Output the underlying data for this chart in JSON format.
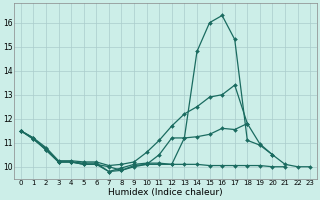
{
  "xlabel": "Humidex (Indice chaleur)",
  "background_color": "#cceee8",
  "grid_color": "#aacccc",
  "line_color": "#1a6b60",
  "xlim": [
    -0.5,
    23.5
  ],
  "ylim": [
    9.5,
    16.8
  ],
  "yticks": [
    10,
    11,
    12,
    13,
    14,
    15,
    16
  ],
  "xticks": [
    0,
    1,
    2,
    3,
    4,
    5,
    6,
    7,
    8,
    9,
    10,
    11,
    12,
    13,
    14,
    15,
    16,
    17,
    18,
    19,
    20,
    21,
    22,
    23
  ],
  "series": [
    {
      "x": [
        0,
        1,
        2,
        3,
        4,
        5,
        6,
        7,
        8,
        9,
        10,
        11,
        12,
        13,
        14,
        15,
        16,
        17,
        18,
        19,
        20,
        21,
        22,
        23
      ],
      "y": [
        11.5,
        11.2,
        10.7,
        10.2,
        10.2,
        10.15,
        10.15,
        9.8,
        9.95,
        10.1,
        10.15,
        10.15,
        10.1,
        11.2,
        14.8,
        16.0,
        16.3,
        15.3,
        11.1,
        10.9,
        10.5,
        10.1,
        10.0,
        10.0
      ]
    },
    {
      "x": [
        0,
        1,
        2,
        3,
        4,
        5,
        6,
        7,
        8,
        9,
        10,
        11,
        12,
        13,
        14,
        15,
        16,
        17,
        18
      ],
      "y": [
        11.5,
        11.2,
        10.8,
        10.25,
        10.25,
        10.2,
        10.2,
        10.05,
        10.1,
        10.2,
        10.6,
        11.1,
        11.7,
        12.2,
        12.5,
        12.9,
        13.0,
        13.4,
        11.8
      ]
    },
    {
      "x": [
        0,
        1,
        2,
        3,
        4,
        5,
        6,
        7,
        8,
        9,
        10,
        11,
        12,
        13,
        14,
        15,
        16,
        17,
        18,
        19,
        20,
        21,
        22,
        23
      ],
      "y": [
        11.5,
        11.15,
        10.75,
        10.2,
        10.2,
        10.1,
        10.1,
        10.0,
        9.85,
        10.0,
        10.1,
        10.5,
        11.2,
        11.2,
        11.25,
        11.35,
        11.6,
        11.55,
        11.8,
        10.95,
        10.5,
        null,
        null,
        null
      ]
    },
    {
      "x": [
        0,
        1,
        2,
        3,
        4,
        5,
        6,
        7,
        8,
        9,
        10,
        11,
        12,
        13,
        14,
        15,
        16,
        17,
        18,
        19,
        20,
        21,
        22,
        23
      ],
      "y": [
        11.5,
        11.15,
        10.7,
        10.2,
        10.2,
        10.1,
        10.1,
        9.8,
        9.85,
        10.05,
        10.1,
        10.1,
        10.1,
        10.1,
        10.1,
        10.05,
        10.05,
        10.05,
        10.05,
        10.05,
        10.0,
        10.0,
        null,
        null
      ]
    }
  ]
}
